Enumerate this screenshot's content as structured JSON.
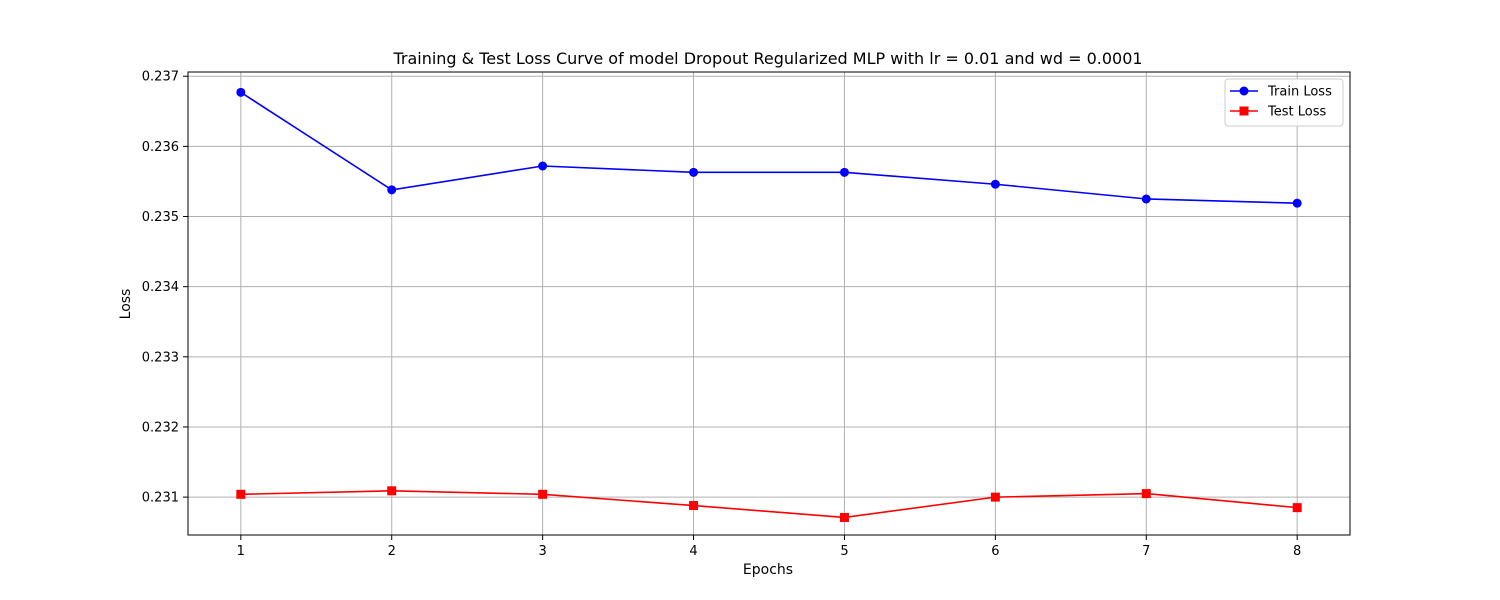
{
  "chart_data": {
    "type": "line",
    "title": "Training & Test Loss Curve of model Dropout Regularized MLP with lr = 0.01 and wd = 0.0001",
    "xlabel": "Epochs",
    "ylabel": "Loss",
    "x": [
      1,
      2,
      3,
      4,
      5,
      6,
      7,
      8
    ],
    "x_ticks": [
      "1",
      "2",
      "3",
      "4",
      "5",
      "6",
      "7",
      "8"
    ],
    "y_ticks": [
      "0.231",
      "0.232",
      "0.233",
      "0.234",
      "0.235",
      "0.236",
      "0.237"
    ],
    "y_tick_values": [
      0.231,
      0.232,
      0.233,
      0.234,
      0.235,
      0.236,
      0.237
    ],
    "xlim": [
      0.65,
      8.35
    ],
    "ylim": [
      0.23046,
      0.23706
    ],
    "grid": true,
    "legend_position": "top-right",
    "series": [
      {
        "name": "Train Loss",
        "color": "#0000ff",
        "marker": "circle",
        "values": [
          0.23677,
          0.23538,
          0.23572,
          0.23563,
          0.23563,
          0.23546,
          0.23525,
          0.23519
        ]
      },
      {
        "name": "Test Loss",
        "color": "#ff0000",
        "marker": "square",
        "values": [
          0.23104,
          0.23109,
          0.23104,
          0.23088,
          0.23071,
          0.231,
          0.23105,
          0.23085
        ]
      }
    ]
  }
}
